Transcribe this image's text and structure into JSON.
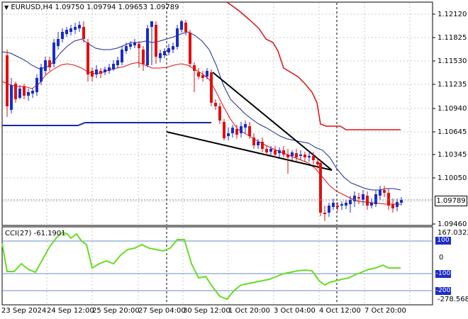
{
  "header": {
    "symbol_arrow": "▼",
    "text": "EURUSD,H4  1.09750 1.09794 1.09653 1.09789"
  },
  "price_axis": {
    "ticks": [
      "1.12120",
      "1.11825",
      "1.11530",
      "1.11235",
      "1.10940",
      "1.10645",
      "1.10345",
      "1.10050",
      "1.09460"
    ],
    "current": "1.09789"
  },
  "cci": {
    "label": "CCI(27) -61.1901",
    "max": "167.0322",
    "min": "-278.568",
    "ticks": [
      "100",
      "0",
      "-100",
      "-200"
    ],
    "line_color": "#66dd22"
  },
  "time_axis": [
    "23 Sep 2024",
    "24 Sep 12:00",
    "25 Sep 20:00",
    "27 Sep 04:00",
    "30 Sep 12:00",
    "1 Oct 20:00",
    "3 Oct 04:00",
    "4 Oct 12:00",
    "7 Oct 20:00"
  ],
  "colors": {
    "bull": "#1a2cc8",
    "bear": "#e01010",
    "blue_line": "#1a2a9c",
    "red_ma": "#e01010",
    "trend": "#000000",
    "grid": "#c8c8c8"
  },
  "chart_data": {
    "type": "candlestick",
    "title": "EURUSD,H4",
    "ohlc_last": {
      "open": 1.0975,
      "high": 1.09794,
      "low": 1.09653,
      "close": 1.09789
    },
    "ylim": [
      1.0946,
      1.1212
    ],
    "cci_range": [
      -278.568,
      167.0322
    ],
    "cci_last": -61.1901
  }
}
